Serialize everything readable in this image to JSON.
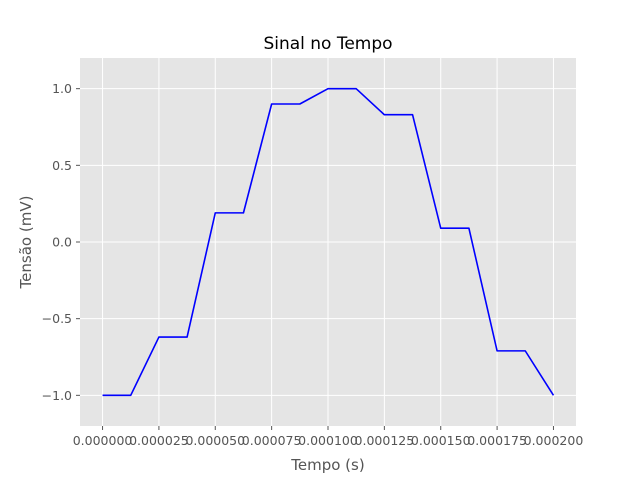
{
  "chart_data": {
    "type": "line",
    "title": "Sinal no Tempo",
    "xlabel": "Tempo (s)",
    "ylabel": "Tensão (mV)",
    "xlim": [
      -1e-05,
      0.00021
    ],
    "ylim": [
      -1.2,
      1.2
    ],
    "grid": true,
    "x_ticks": [
      0.0,
      2.5e-05,
      5e-05,
      7.5e-05,
      0.0001,
      0.000125,
      0.00015,
      0.000175,
      0.0002
    ],
    "x_tick_labels": [
      "0.000000",
      "0.000025",
      "0.000050",
      "0.000075",
      "0.000100",
      "0.000125",
      "0.000150",
      "0.000175",
      "0.000200"
    ],
    "y_ticks": [
      -1.0,
      -0.5,
      0.0,
      0.5,
      1.0
    ],
    "y_tick_labels": [
      "−1.0",
      "−0.5",
      "0.0",
      "0.5",
      "1.0"
    ],
    "series": [
      {
        "color": "#0000ff",
        "x": [
          0.0,
          1.25e-05,
          2.5e-05,
          3.75e-05,
          5e-05,
          6.25e-05,
          7.5e-05,
          8.75e-05,
          0.0001,
          0.0001125,
          0.000125,
          0.0001375,
          0.00015,
          0.0001625,
          0.000175,
          0.0001875,
          0.0002
        ],
        "y": [
          -1.0,
          -1.0,
          -0.62,
          -0.62,
          0.19,
          0.19,
          0.9,
          0.9,
          1.0,
          1.0,
          0.83,
          0.83,
          0.09,
          0.09,
          -0.71,
          -0.71,
          -1.0
        ]
      }
    ]
  }
}
